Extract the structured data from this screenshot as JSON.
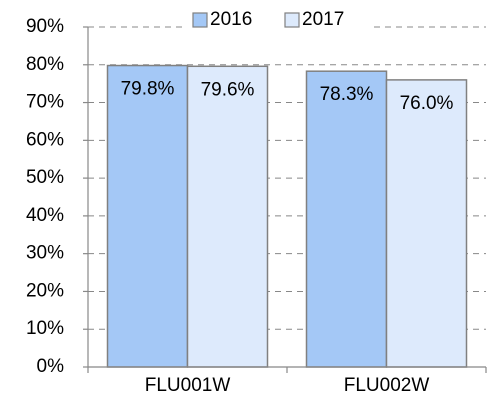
{
  "chart_data": {
    "type": "bar",
    "categories": [
      "FLU001W",
      "FLU002W"
    ],
    "series": [
      {
        "name": "2016",
        "color": "#a4c8f6",
        "values": [
          79.8,
          78.3
        ],
        "value_labels": [
          "79.8%",
          "78.3%"
        ]
      },
      {
        "name": "2017",
        "color": "#ddeafc",
        "values": [
          79.6,
          76.0
        ],
        "value_labels": [
          "79.6%",
          "76.0%"
        ]
      }
    ],
    "ylim": [
      0,
      90
    ],
    "yticks": [
      {
        "value": 0,
        "label": "0%"
      },
      {
        "value": 10,
        "label": "10%"
      },
      {
        "value": 20,
        "label": "20%"
      },
      {
        "value": 30,
        "label": "30%"
      },
      {
        "value": 40,
        "label": "40%"
      },
      {
        "value": 50,
        "label": "50%"
      },
      {
        "value": 60,
        "label": "60%"
      },
      {
        "value": 70,
        "label": "70%"
      },
      {
        "value": 80,
        "label": "80%"
      },
      {
        "value": 90,
        "label": "90%"
      }
    ],
    "grid": true,
    "legend": "top"
  }
}
